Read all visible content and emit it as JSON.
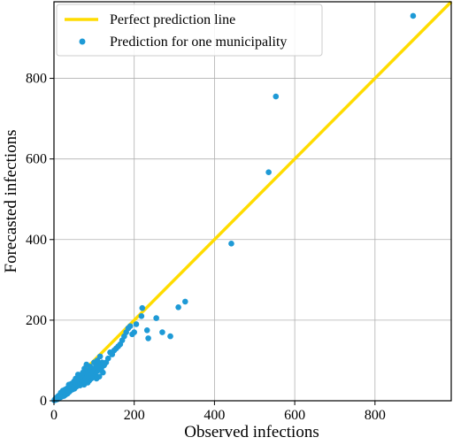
{
  "chart_data": {
    "type": "scatter",
    "title": "",
    "xlabel": "Observed infections",
    "ylabel": "Forecasted infections",
    "xlim": [
      0,
      990
    ],
    "ylim": [
      0,
      990
    ],
    "xticks": [
      0,
      200,
      400,
      600,
      800
    ],
    "yticks": [
      0,
      200,
      400,
      600,
      800
    ],
    "tick_labels": {
      "x": [
        "0",
        "200",
        "400",
        "600",
        "800"
      ],
      "y": [
        "0",
        "200",
        "400",
        "600",
        "800"
      ]
    },
    "grid": true,
    "legend_position": "top-left",
    "legend": {
      "line_label": "Perfect prediction line",
      "points_label": "Prediction for one municipality"
    },
    "colors": {
      "line": "#FFDC00",
      "points": "#1E9AD6",
      "grid": "#B0B0B0",
      "axes": "#000000"
    },
    "series": [
      {
        "name": "Perfect prediction line",
        "kind": "line",
        "x": [
          0,
          990
        ],
        "y": [
          0,
          990
        ]
      },
      {
        "name": "Prediction for one municipality",
        "kind": "scatter",
        "x": [
          895,
          553,
          535,
          442,
          327,
          310,
          290,
          270,
          255,
          235,
          232,
          220,
          218,
          205,
          200,
          195,
          190,
          185,
          180,
          175,
          170,
          165,
          160,
          155,
          150,
          145,
          140,
          135,
          130,
          125,
          122,
          120,
          118,
          115,
          113,
          112,
          110,
          108,
          106,
          105,
          103,
          102,
          100,
          98,
          97,
          95,
          93,
          92,
          90,
          88,
          87,
          85,
          84,
          82,
          81,
          80,
          78,
          76,
          75,
          74,
          72,
          70,
          69,
          68,
          66,
          65,
          64,
          62,
          60,
          59,
          58,
          56,
          55,
          54,
          52,
          51,
          50,
          48,
          47,
          46,
          45,
          44,
          43,
          42,
          41,
          40,
          38,
          37,
          36,
          35,
          34,
          33,
          32,
          31,
          30,
          29,
          28,
          27,
          26,
          25,
          24,
          23,
          22,
          21,
          20,
          19,
          18,
          17,
          16,
          15,
          14,
          13,
          12,
          11,
          10,
          9,
          8,
          7,
          6,
          5,
          4,
          3,
          2,
          1
        ],
        "y": [
          955,
          755,
          567,
          390,
          246,
          232,
          160,
          170,
          205,
          155,
          175,
          230,
          210,
          190,
          170,
          165,
          185,
          180,
          170,
          160,
          150,
          140,
          135,
          130,
          125,
          115,
          120,
          105,
          95,
          88,
          70,
          95,
          80,
          110,
          60,
          90,
          75,
          100,
          55,
          85,
          68,
          72,
          95,
          60,
          80,
          65,
          55,
          70,
          85,
          50,
          62,
          75,
          45,
          58,
          90,
          68,
          52,
          80,
          40,
          60,
          70,
          55,
          45,
          62,
          50,
          38,
          58,
          48,
          65,
          42,
          52,
          35,
          45,
          55,
          40,
          30,
          48,
          36,
          44,
          28,
          38,
          33,
          42,
          26,
          35,
          30,
          22,
          40,
          28,
          32,
          18,
          26,
          30,
          20,
          24,
          15,
          28,
          18,
          22,
          12,
          20,
          16,
          25,
          14,
          18,
          10,
          15,
          20,
          12,
          8,
          14,
          10,
          6,
          12,
          8,
          4,
          9,
          6,
          3,
          7,
          4,
          2,
          3,
          1
        ]
      }
    ]
  }
}
